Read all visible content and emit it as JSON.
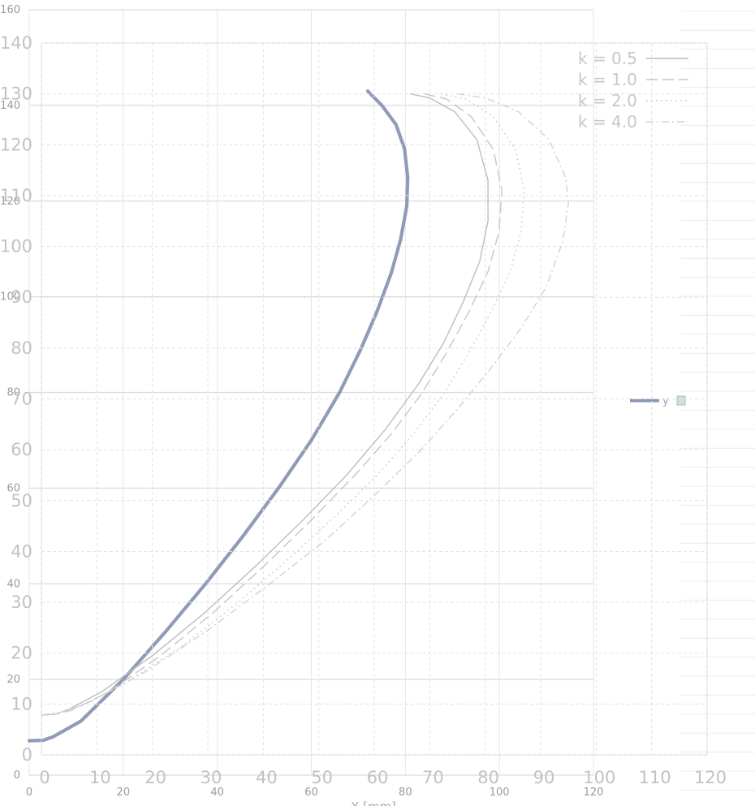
{
  "chart_data": [
    {
      "type": "line",
      "layer": "back",
      "xlabel": "X [mm]",
      "xlim": [
        0,
        120
      ],
      "ylim": [
        0,
        160
      ],
      "xticks": [
        "0",
        "20",
        "40",
        "60",
        "80",
        "100",
        "120"
      ],
      "yticks": [
        "0",
        "20",
        "40",
        "60",
        "80",
        "100",
        "120",
        "140",
        "160"
      ],
      "grid": true,
      "legend": "right",
      "series": [
        {
          "name": "y",
          "color": "#8a96b4",
          "points": [
            [
              72,
              143
            ],
            [
              75,
              140
            ],
            [
              78,
              136
            ],
            [
              79.8,
              131
            ],
            [
              80.5,
              125
            ],
            [
              80.3,
              119
            ],
            [
              79,
              112
            ],
            [
              77,
              105
            ],
            [
              74,
              97
            ],
            [
              70.5,
              89
            ],
            [
              66,
              80
            ],
            [
              60,
              70
            ],
            [
              53,
              60
            ],
            [
              45.5,
              50
            ],
            [
              37.5,
              40
            ],
            [
              29,
              30
            ],
            [
              20,
              20
            ],
            [
              11,
              11.3
            ],
            [
              5,
              8
            ],
            [
              3,
              7.3
            ],
            [
              0,
              7.2
            ]
          ]
        }
      ]
    },
    {
      "type": "line",
      "layer": "front",
      "xlim": [
        0,
        120
      ],
      "ylim": [
        0,
        140
      ],
      "xticks": [
        "0",
        "10",
        "20",
        "30",
        "40",
        "50",
        "60",
        "70",
        "80",
        "90",
        "100",
        "110",
        "120"
      ],
      "yticks": [
        "0",
        "10",
        "20",
        "30",
        "40",
        "50",
        "60",
        "70",
        "80",
        "90",
        "100",
        "110",
        "120",
        "130",
        "140"
      ],
      "grid": true,
      "legend": "top-right",
      "series": [
        {
          "name": "k = 0.5",
          "style": "solid",
          "color": "#bdbdbd",
          "points": [
            [
              66.5,
              130
            ],
            [
              70,
              129.2
            ],
            [
              74.5,
              126.5
            ],
            [
              78.5,
              121
            ],
            [
              80.5,
              113
            ],
            [
              80.5,
              105
            ],
            [
              79,
              97
            ],
            [
              76,
              89
            ],
            [
              72.5,
              81
            ],
            [
              68,
              73
            ],
            [
              62,
              64
            ],
            [
              55,
              55
            ],
            [
              47,
              46
            ],
            [
              38.5,
              37
            ],
            [
              29.5,
              28
            ],
            [
              20,
              19.5
            ],
            [
              11,
              12.5
            ],
            [
              5,
              9
            ],
            [
              2.5,
              8
            ],
            [
              0,
              7.8
            ]
          ]
        },
        {
          "name": "k = 1.0",
          "style": "dashed",
          "color": "#c6c6c6",
          "points": [
            [
              69,
              130
            ],
            [
              73,
              129
            ],
            [
              77.5,
              125.5
            ],
            [
              81.5,
              119
            ],
            [
              83,
              111
            ],
            [
              82.5,
              103
            ],
            [
              80.5,
              95
            ],
            [
              77,
              87
            ],
            [
              73,
              79
            ],
            [
              68.5,
              71
            ],
            [
              63,
              63
            ],
            [
              56.5,
              55
            ],
            [
              48.5,
              46
            ],
            [
              40,
              37
            ],
            [
              31,
              28
            ],
            [
              21.5,
              19.5
            ],
            [
              12,
              12.3
            ],
            [
              5.5,
              8.8
            ],
            [
              2.5,
              8
            ],
            [
              0,
              7.8
            ]
          ]
        },
        {
          "name": "k = 2.0",
          "style": "dotted",
          "color": "#cfcfcf",
          "points": [
            [
              72,
              130
            ],
            [
              76.5,
              129
            ],
            [
              81.5,
              125.5
            ],
            [
              85.5,
              119
            ],
            [
              87,
              111
            ],
            [
              86.5,
              103
            ],
            [
              84.5,
              95
            ],
            [
              81,
              87
            ],
            [
              77,
              79
            ],
            [
              72.5,
              71
            ],
            [
              67,
              63
            ],
            [
              60.5,
              55
            ],
            [
              53,
              47
            ],
            [
              44.5,
              38.5
            ],
            [
              35.5,
              30
            ],
            [
              25.5,
              21.5
            ],
            [
              15,
              14
            ],
            [
              7,
              9.5
            ],
            [
              3,
              8.2
            ],
            [
              0,
              7.8
            ]
          ]
        },
        {
          "name": "k = 4.0",
          "style": "dashdot",
          "color": "#d2d2d2",
          "points": [
            [
              75,
              130
            ],
            [
              80,
              129.2
            ],
            [
              86,
              126.5
            ],
            [
              91.5,
              121
            ],
            [
              94.5,
              113.5
            ],
            [
              95,
              108.5
            ],
            [
              94,
              101
            ],
            [
              91,
              92
            ],
            [
              86.5,
              84
            ],
            [
              81,
              76
            ],
            [
              75,
              68
            ],
            [
              68,
              59.5
            ],
            [
              60,
              51
            ],
            [
              51,
              42
            ],
            [
              41,
              33.5
            ],
            [
              30,
              24.5
            ],
            [
              19,
              16.5
            ],
            [
              9,
              10.5
            ],
            [
              4,
              8.5
            ],
            [
              0,
              7.8
            ]
          ]
        }
      ]
    }
  ]
}
